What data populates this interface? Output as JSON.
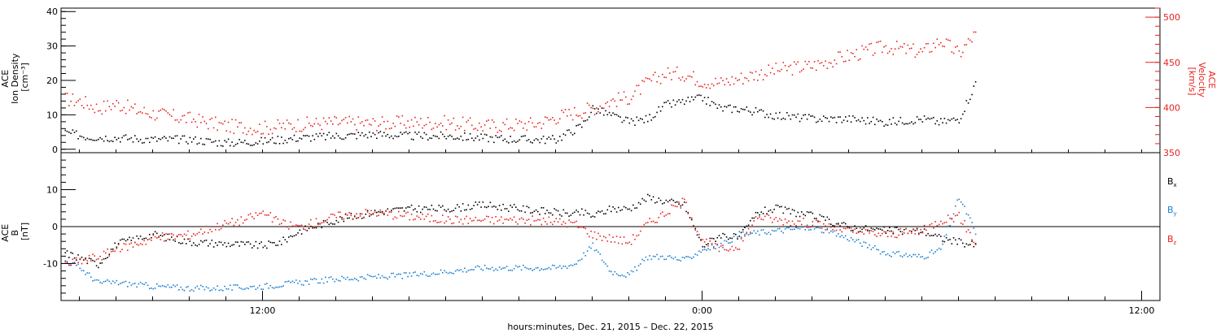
{
  "xlabel": "hours:minutes, Dec. 21, 2015 – Dec. 22, 2015",
  "x_ticks": [
    {
      "hour": 12,
      "label": "12:00"
    },
    {
      "hour": 24,
      "label": "0:00"
    },
    {
      "hour": 36,
      "label": "12:00"
    }
  ],
  "colors": {
    "black": "#000000",
    "red": "#e8221d",
    "blue": "#1a7fcf"
  },
  "chart_data": [
    {
      "type": "scatter",
      "panel": "top",
      "left_axis": {
        "label_lines": [
          "ACE",
          "Ion Density",
          "[cm⁻³]"
        ],
        "ticks": [
          0,
          10,
          20,
          30,
          40
        ],
        "ylim": [
          -1,
          41
        ]
      },
      "right_axis": {
        "label_lines": [
          "ACE",
          "Velocity",
          "[km/s]"
        ],
        "ticks": [
          350,
          400,
          450,
          500
        ],
        "ylim": [
          350,
          510
        ]
      },
      "x_unit": "hours since 2015-12-21 00:00",
      "xlim": [
        6.5,
        36.5
      ],
      "series": [
        {
          "axis": "left",
          "color": "#000000",
          "density": 2,
          "points": [
            [
              6.6,
              5
            ],
            [
              7.2,
              3.8
            ],
            [
              8,
              3.5
            ],
            [
              9,
              3
            ],
            [
              10,
              3
            ],
            [
              11,
              2
            ],
            [
              12,
              2.5
            ],
            [
              13,
              3.5
            ],
            [
              14,
              4
            ],
            [
              15,
              4.5
            ],
            [
              16,
              4
            ],
            [
              17,
              4
            ],
            [
              18,
              3.5
            ],
            [
              19,
              3
            ],
            [
              20,
              3
            ],
            [
              20.7,
              7
            ],
            [
              21,
              12
            ],
            [
              21.5,
              10
            ],
            [
              22,
              8
            ],
            [
              22.5,
              9
            ],
            [
              23,
              13
            ],
            [
              23.5,
              14
            ],
            [
              24,
              15
            ],
            [
              24.5,
              12
            ],
            [
              25,
              12
            ],
            [
              26,
              10
            ],
            [
              27,
              9
            ],
            [
              28,
              9
            ],
            [
              29,
              8
            ],
            [
              30,
              9
            ],
            [
              30.5,
              8
            ],
            [
              31,
              9
            ],
            [
              31.4,
              18
            ],
            [
              31.5,
              21
            ]
          ]
        },
        {
          "axis": "right",
          "color": "#e8221d",
          "density": 2,
          "points": [
            [
              6.6,
              410
            ],
            [
              7,
              408
            ],
            [
              7.5,
              400
            ],
            [
              8,
              405
            ],
            [
              8.5,
              398
            ],
            [
              9,
              394
            ],
            [
              10,
              388
            ],
            [
              11,
              380
            ],
            [
              12,
              378
            ],
            [
              13,
              382
            ],
            [
              14,
              384
            ],
            [
              15,
              383
            ],
            [
              16,
              384
            ],
            [
              17,
              384
            ],
            [
              18,
              380
            ],
            [
              19,
              382
            ],
            [
              19.5,
              383
            ],
            [
              20,
              390
            ],
            [
              20.5,
              395
            ],
            [
              21,
              400
            ],
            [
              21.5,
              408
            ],
            [
              22,
              412
            ],
            [
              22.5,
              428
            ],
            [
              23,
              438
            ],
            [
              23.5,
              438
            ],
            [
              24,
              430
            ],
            [
              24.5,
              428
            ],
            [
              25,
              433
            ],
            [
              25.5,
              438
            ],
            [
              26,
              442
            ],
            [
              27,
              447
            ],
            [
              28,
              458
            ],
            [
              29,
              468
            ],
            [
              30,
              462
            ],
            [
              30.5,
              475
            ],
            [
              31,
              460
            ],
            [
              31.4,
              480
            ],
            [
              31.5,
              482
            ]
          ]
        }
      ]
    },
    {
      "type": "scatter",
      "panel": "bottom",
      "left_axis": {
        "label_lines": [
          "ACE",
          "B",
          "[nT]"
        ],
        "ticks": [
          -10,
          0,
          10
        ],
        "ylim": [
          -20,
          20
        ]
      },
      "xlim": [
        6.5,
        36.5
      ],
      "legend": [
        "Bx",
        "By",
        "Bz"
      ],
      "zero_line": true,
      "series": [
        {
          "name": "Bx",
          "color": "#000000",
          "density": 2,
          "points": [
            [
              6.6,
              -7
            ],
            [
              7.5,
              -10
            ],
            [
              8,
              -4.5
            ],
            [
              9,
              -2
            ],
            [
              10,
              -4
            ],
            [
              11,
              -4.5
            ],
            [
              12,
              -5
            ],
            [
              12.5,
              -4
            ],
            [
              13,
              -1
            ],
            [
              14,
              2
            ],
            [
              15,
              4
            ],
            [
              16,
              5
            ],
            [
              17,
              5
            ],
            [
              18,
              6
            ],
            [
              19,
              5
            ],
            [
              20,
              4
            ],
            [
              20.5,
              3.5
            ],
            [
              20.7,
              4
            ],
            [
              21,
              3
            ],
            [
              21.5,
              5
            ],
            [
              22,
              5
            ],
            [
              22.5,
              8
            ],
            [
              23,
              7
            ],
            [
              23.5,
              6
            ],
            [
              24,
              -5
            ],
            [
              24.5,
              -2
            ],
            [
              25,
              -3
            ],
            [
              25.5,
              4
            ],
            [
              26,
              5
            ],
            [
              27,
              3
            ],
            [
              28,
              0
            ],
            [
              29,
              -1
            ],
            [
              30,
              -1
            ],
            [
              30.5,
              -3
            ],
            [
              31,
              -4
            ],
            [
              31.5,
              -5
            ]
          ]
        },
        {
          "name": "By",
          "color": "#1a7fcf",
          "density": 2,
          "points": [
            [
              6.6,
              -9
            ],
            [
              7,
              -11
            ],
            [
              7.5,
              -15
            ],
            [
              8,
              -15
            ],
            [
              9,
              -16
            ],
            [
              10,
              -16.5
            ],
            [
              11,
              -16.5
            ],
            [
              12,
              -16
            ],
            [
              13,
              -15
            ],
            [
              14,
              -14
            ],
            [
              15,
              -13.5
            ],
            [
              16,
              -13
            ],
            [
              17,
              -12
            ],
            [
              18,
              -11
            ],
            [
              19,
              -11
            ],
            [
              20,
              -11
            ],
            [
              20.5,
              -10
            ],
            [
              20.7,
              -8
            ],
            [
              21,
              -5
            ],
            [
              21.5,
              -12
            ],
            [
              22,
              -13
            ],
            [
              22.5,
              -8
            ],
            [
              23,
              -8
            ],
            [
              23.5,
              -9
            ],
            [
              24,
              -6
            ],
            [
              24.5,
              -5
            ],
            [
              25,
              -2
            ],
            [
              26,
              -1
            ],
            [
              27,
              0
            ],
            [
              28,
              -3
            ],
            [
              29,
              -7
            ],
            [
              30,
              -8
            ],
            [
              30.5,
              -6
            ],
            [
              31,
              8
            ],
            [
              31.3,
              2
            ],
            [
              31.5,
              -3
            ]
          ]
        },
        {
          "name": "Bz",
          "color": "#e8221d",
          "density": 2,
          "points": [
            [
              6.6,
              -10
            ],
            [
              7.5,
              -8
            ],
            [
              8,
              -6
            ],
            [
              9,
              -3
            ],
            [
              10,
              -2
            ],
            [
              11,
              1
            ],
            [
              11.5,
              2
            ],
            [
              12,
              4
            ],
            [
              12.5,
              1
            ],
            [
              13,
              0
            ],
            [
              14,
              3
            ],
            [
              15,
              4
            ],
            [
              16,
              3
            ],
            [
              17,
              2
            ],
            [
              18,
              2
            ],
            [
              19,
              2
            ],
            [
              20,
              1.5
            ],
            [
              20.5,
              1
            ],
            [
              21,
              -2
            ],
            [
              21.5,
              -3
            ],
            [
              22,
              -4
            ],
            [
              22.5,
              1
            ],
            [
              23,
              4
            ],
            [
              23.5,
              7
            ],
            [
              24,
              -4
            ],
            [
              24.5,
              -6
            ],
            [
              25,
              -5
            ],
            [
              25.5,
              3
            ],
            [
              26,
              2
            ],
            [
              27,
              1
            ],
            [
              28,
              -1
            ],
            [
              29,
              -2
            ],
            [
              30,
              -1
            ],
            [
              30.5,
              2
            ],
            [
              31,
              3
            ],
            [
              31.5,
              -5
            ]
          ]
        }
      ]
    }
  ]
}
